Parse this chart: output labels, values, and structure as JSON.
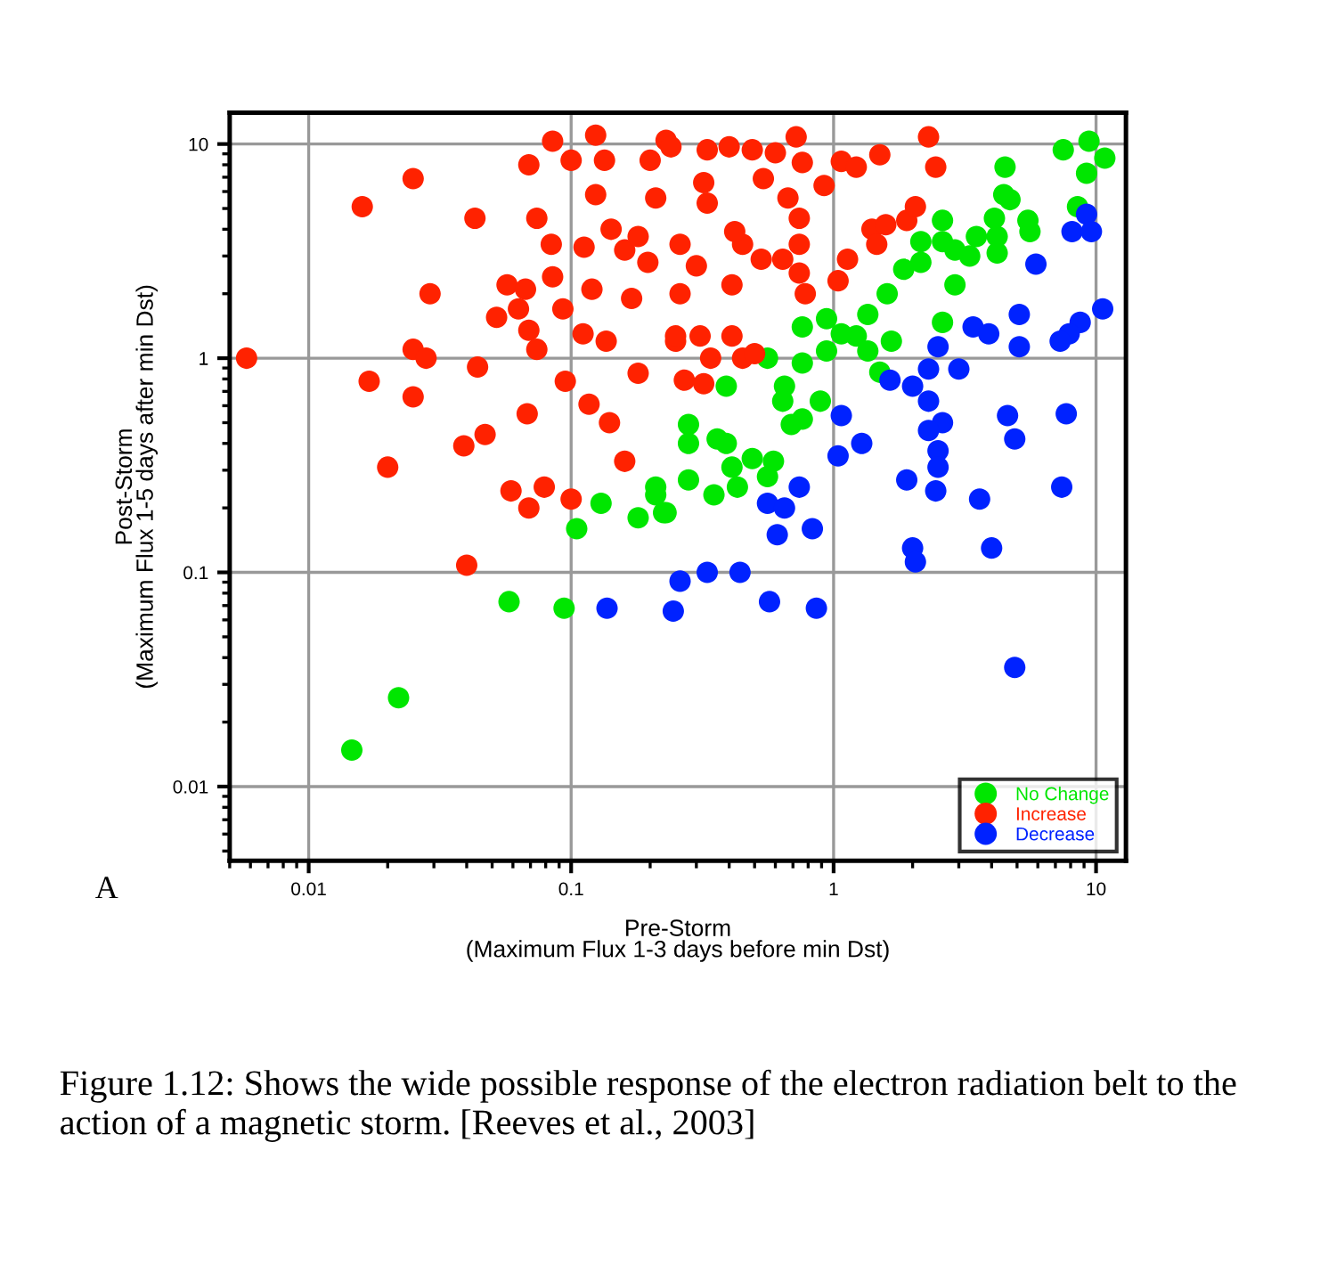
{
  "chart_data": {
    "type": "scatter",
    "xlabel": "Pre-Storm\n(Maximum Flux 1-3 days before min Dst)",
    "ylabel": "Post-Storm\n(Maximum Flux 1-5 days after min Dst)",
    "annotations": [
      "A",
      "Figure 1.12: Shows the wide possible response of the electron radiation belt to the action of a magnetic storm. [Reeves et al., 2003]"
    ],
    "log": "xy",
    "grid": true,
    "legend": "bottom right",
    "marker": "circle",
    "xlim": [
      0.005,
      13
    ],
    "ylim": [
      0.0045,
      14
    ],
    "xticks": [
      0.01,
      0.1,
      1,
      10
    ],
    "yticks": [
      0.01,
      0.1,
      1,
      10
    ],
    "series": [
      {
        "name": "No Change",
        "color": "#00e600",
        "x": [
          7.5,
          9.4,
          10.8,
          9.2,
          8.5,
          4.5,
          4.45,
          4.7,
          4.1,
          5.5,
          5.6,
          4.2,
          4.2,
          3.5,
          3.3,
          2.9,
          2.6,
          2.6,
          2.9,
          2.15,
          2.15,
          1.85,
          1.6,
          1.35,
          1.66,
          2.6,
          1.22,
          0.94,
          1.07,
          0.94,
          1.35,
          0.76,
          0.76,
          1.5,
          0.56,
          0.39,
          0.65,
          0.64,
          0.76,
          0.89,
          0.69,
          0.28,
          0.28,
          0.36,
          0.39,
          0.49,
          0.59,
          0.41,
          0.28,
          0.43,
          0.56,
          0.21,
          0.35,
          0.23,
          0.13,
          0.105,
          0.18,
          0.21,
          0.225,
          0.058,
          0.094,
          0.022,
          0.0146
        ],
        "values": [
          9.4,
          10.3,
          8.6,
          7.3,
          5.1,
          7.8,
          5.8,
          5.5,
          4.5,
          4.4,
          3.9,
          3.7,
          3.1,
          3.7,
          3.0,
          2.2,
          4.4,
          3.5,
          3.2,
          3.5,
          2.8,
          2.6,
          2.0,
          1.6,
          1.2,
          1.47,
          1.27,
          1.53,
          1.3,
          1.08,
          1.08,
          1.4,
          0.95,
          0.86,
          1.0,
          0.74,
          0.74,
          0.63,
          0.52,
          0.63,
          0.49,
          0.49,
          0.4,
          0.42,
          0.4,
          0.34,
          0.33,
          0.31,
          0.27,
          0.25,
          0.28,
          0.25,
          0.23,
          0.19,
          0.21,
          0.16,
          0.18,
          0.23,
          0.19,
          0.073,
          0.068,
          0.026,
          0.0148
        ]
      },
      {
        "name": "Increase",
        "color": "#ff2200",
        "x": [
          0.0058,
          0.016,
          0.025,
          0.029,
          0.043,
          0.017,
          0.025,
          0.028,
          0.025,
          0.044,
          0.039,
          0.047,
          0.02,
          0.052,
          0.057,
          0.063,
          0.069,
          0.067,
          0.074,
          0.068,
          0.069,
          0.085,
          0.074,
          0.084,
          0.085,
          0.093,
          0.095,
          0.1,
          0.124,
          0.134,
          0.124,
          0.142,
          0.112,
          0.12,
          0.111,
          0.136,
          0.117,
          0.14,
          0.16,
          0.18,
          0.16,
          0.18,
          0.196,
          0.17,
          0.21,
          0.2,
          0.23,
          0.25,
          0.059,
          0.079,
          0.069,
          0.1,
          0.04,
          0.24,
          0.33,
          0.4,
          0.49,
          0.6,
          0.72,
          0.76,
          0.54,
          0.32,
          0.33,
          0.67,
          0.74,
          0.74,
          0.74,
          0.78,
          0.64,
          0.53,
          0.45,
          0.42,
          0.26,
          0.3,
          0.26,
          0.41,
          0.92,
          1.07,
          1.22,
          1.5,
          2.3,
          2.45,
          1.13,
          1.04,
          1.4,
          1.46,
          1.58,
          1.9,
          2.05,
          0.25,
          0.31,
          0.34,
          0.41,
          0.45,
          0.5,
          0.27,
          0.32
        ],
        "values": [
          1.0,
          5.1,
          6.9,
          2.0,
          4.5,
          0.78,
          1.1,
          1.0,
          0.66,
          0.91,
          0.39,
          0.44,
          0.31,
          1.55,
          2.2,
          1.7,
          1.35,
          2.1,
          1.1,
          0.55,
          8.0,
          10.3,
          4.5,
          3.4,
          2.4,
          1.7,
          0.78,
          8.4,
          11,
          8.4,
          5.8,
          4.0,
          3.3,
          2.1,
          1.3,
          1.2,
          0.61,
          0.5,
          0.33,
          0.85,
          3.2,
          3.7,
          2.8,
          1.9,
          5.6,
          8.4,
          10.4,
          1.2,
          0.24,
          0.25,
          0.2,
          0.22,
          0.108,
          9.7,
          9.4,
          9.7,
          9.4,
          9.1,
          10.8,
          8.2,
          6.9,
          6.6,
          5.3,
          5.6,
          4.5,
          3.4,
          2.5,
          2.0,
          2.9,
          2.9,
          3.4,
          3.9,
          3.4,
          2.7,
          2.0,
          2.2,
          6.4,
          8.3,
          7.8,
          8.9,
          10.8,
          7.8,
          2.9,
          2.3,
          4.0,
          3.4,
          4.2,
          4.4,
          5.1,
          1.27,
          1.27,
          1.0,
          1.27,
          1.0,
          1.05,
          0.79,
          0.76
        ]
      },
      {
        "name": "Decrease",
        "color": "#0022ff",
        "x": [
          9.2,
          8.1,
          9.6,
          5.9,
          10.6,
          8.7,
          7.9,
          7.3,
          5.1,
          5.1,
          3.4,
          3.9,
          2.5,
          3.0,
          2.3,
          1.64,
          2.0,
          2.3,
          2.6,
          2.3,
          2.5,
          2.5,
          4.6,
          4.9,
          7.7,
          1.07,
          1.28,
          1.04,
          0.74,
          1.9,
          2.45,
          3.6,
          7.4,
          2.0,
          2.05,
          4.0,
          4.9,
          0.56,
          0.65,
          0.61,
          0.83,
          0.26,
          0.33,
          0.44,
          0.245,
          0.57,
          0.86,
          0.137
        ],
        "values": [
          4.7,
          3.9,
          3.9,
          2.75,
          1.7,
          1.47,
          1.3,
          1.2,
          1.6,
          1.13,
          1.4,
          1.3,
          1.13,
          0.89,
          0.89,
          0.79,
          0.74,
          0.63,
          0.5,
          0.46,
          0.37,
          0.31,
          0.54,
          0.42,
          0.55,
          0.54,
          0.4,
          0.35,
          0.25,
          0.27,
          0.24,
          0.22,
          0.25,
          0.13,
          0.112,
          0.13,
          0.036,
          0.21,
          0.2,
          0.15,
          0.16,
          0.091,
          0.1,
          0.1,
          0.066,
          0.073,
          0.068,
          0.068
        ]
      }
    ]
  }
}
